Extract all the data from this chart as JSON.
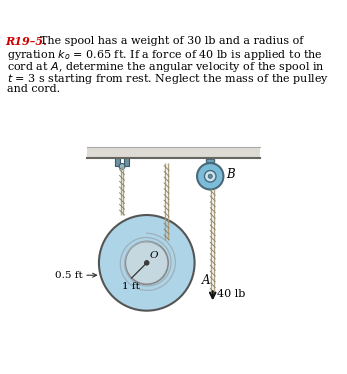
{
  "bg_color": "#ffffff",
  "text_color": "#000000",
  "title_color": "#cc0000",
  "ceiling_color": "#dedad4",
  "ceiling_edge_color": "#888880",
  "spool_outer_color": "#aed4e8",
  "spool_outer_edge": "#555555",
  "spool_inner_color": "#c5d8e0",
  "spool_inner_edge": "#888888",
  "cord_color": "#b0a080",
  "cord_dark": "#808060",
  "pulley_color": "#7bbcd8",
  "pulley_edge": "#4a6a7a",
  "pulley_light": "#c8e4f0",
  "bracket_color": "#7bafc8",
  "arrow_color": "#111111",
  "label_40lb": "40 lb",
  "label_A": "A",
  "label_B": "B",
  "label_O": "O",
  "label_05ft": "0.5 ft",
  "label_1ft": "1 ft",
  "fig_width": 3.47,
  "fig_height": 3.74,
  "dpi": 100
}
